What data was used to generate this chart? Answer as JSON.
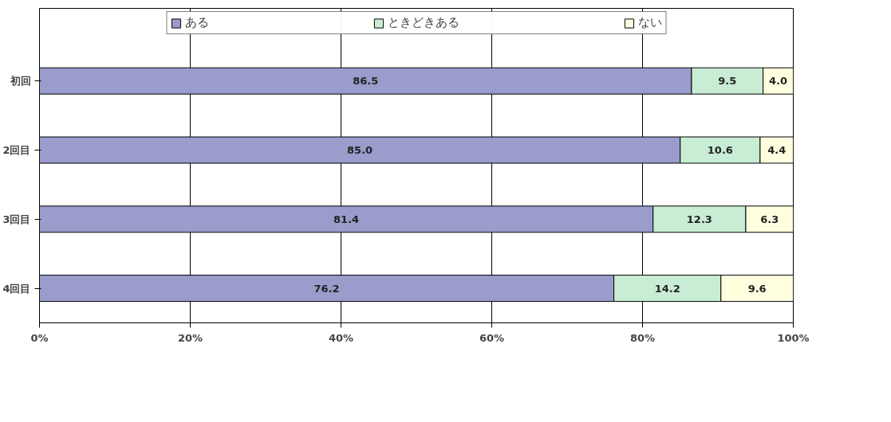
{
  "chart_data": {
    "type": "bar",
    "orientation": "horizontal",
    "stacked": true,
    "categories": [
      "初回",
      "2回目",
      "3回目",
      "4回目"
    ],
    "series": [
      {
        "name": "ある",
        "color": "#9a9ccc",
        "values": [
          86.5,
          85.0,
          81.4,
          76.2
        ]
      },
      {
        "name": "ときどきある",
        "color": "#c8ecd4",
        "values": [
          9.5,
          10.6,
          12.3,
          14.2
        ]
      },
      {
        "name": "ない",
        "color": "#ffffe0",
        "values": [
          4.0,
          4.4,
          6.3,
          9.6
        ]
      }
    ],
    "value_labels": [
      [
        "86.5",
        "85.0",
        "81.4",
        "76.2"
      ],
      [
        "9.5",
        "10.6",
        "12.3",
        "14.2"
      ],
      [
        "4.0",
        "4.4",
        "6.3",
        "9.6"
      ]
    ],
    "xlim": [
      0,
      100
    ],
    "xticks": [
      {
        "value": 0,
        "label": "0%"
      },
      {
        "value": 20,
        "label": "20%"
      },
      {
        "value": 40,
        "label": "40%"
      },
      {
        "value": 60,
        "label": "60%"
      },
      {
        "value": 80,
        "label": "80%"
      },
      {
        "value": 100,
        "label": "100%"
      }
    ],
    "grid": "x",
    "legend": "top"
  }
}
